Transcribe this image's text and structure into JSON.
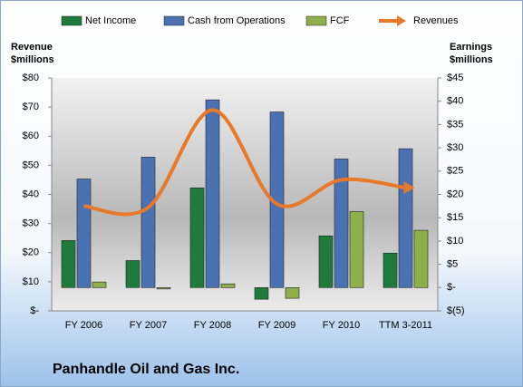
{
  "chart_data": {
    "type": "bar-line",
    "title": "Panhandle Oil and Gas Inc.",
    "y_label": [
      "Revenue",
      "$millions"
    ],
    "y2_label": [
      "Earnings",
      "$millions"
    ],
    "categories": [
      "FY 2006",
      "FY 2007",
      "FY 2008",
      "FY 2009",
      "FY 2010",
      "TTM 3-2011"
    ],
    "series": [
      {
        "name": "Net Income",
        "type": "bar",
        "axis": "y2",
        "color": "#1e7b3c",
        "values": [
          10.1,
          5.8,
          21.4,
          -2.5,
          11.1,
          7.4
        ]
      },
      {
        "name": "Cash from Operations",
        "type": "bar",
        "axis": "y2",
        "color": "#4a72b2",
        "values": [
          23.3,
          28,
          40.3,
          37.7,
          27.6,
          29.8
        ]
      },
      {
        "name": "FCF",
        "type": "bar",
        "axis": "y2",
        "color": "#8db04a",
        "values": [
          1.2,
          -0.3,
          0.8,
          -2.3,
          16.3,
          12.3
        ]
      },
      {
        "name": "Revenues",
        "type": "line",
        "axis": "y",
        "color": "#e8782a",
        "values": [
          36,
          35.5,
          69,
          36.7,
          45,
          42.3
        ]
      }
    ],
    "ylim": [
      0,
      80
    ],
    "yticks": [
      {
        "value": 0,
        "label": "$-"
      },
      {
        "value": 10,
        "label": "$10"
      },
      {
        "value": 20,
        "label": "$20"
      },
      {
        "value": 30,
        "label": "$30"
      },
      {
        "value": 40,
        "label": "$40"
      },
      {
        "value": 50,
        "label": "$50"
      },
      {
        "value": 60,
        "label": "$60"
      },
      {
        "value": 70,
        "label": "$70"
      },
      {
        "value": 80,
        "label": "$80"
      }
    ],
    "y2lim": [
      -5,
      45
    ],
    "y2ticks": [
      {
        "value": -5,
        "label": "$(5)"
      },
      {
        "value": 0,
        "label": "$-"
      },
      {
        "value": 5,
        "label": "$5"
      },
      {
        "value": 10,
        "label": "$10"
      },
      {
        "value": 15,
        "label": "$15"
      },
      {
        "value": 20,
        "label": "$20"
      },
      {
        "value": 25,
        "label": "$25"
      },
      {
        "value": 30,
        "label": "$30"
      },
      {
        "value": 35,
        "label": "$35"
      },
      {
        "value": 40,
        "label": "$40"
      },
      {
        "value": 45,
        "label": "$45"
      }
    ],
    "legend": "top"
  }
}
